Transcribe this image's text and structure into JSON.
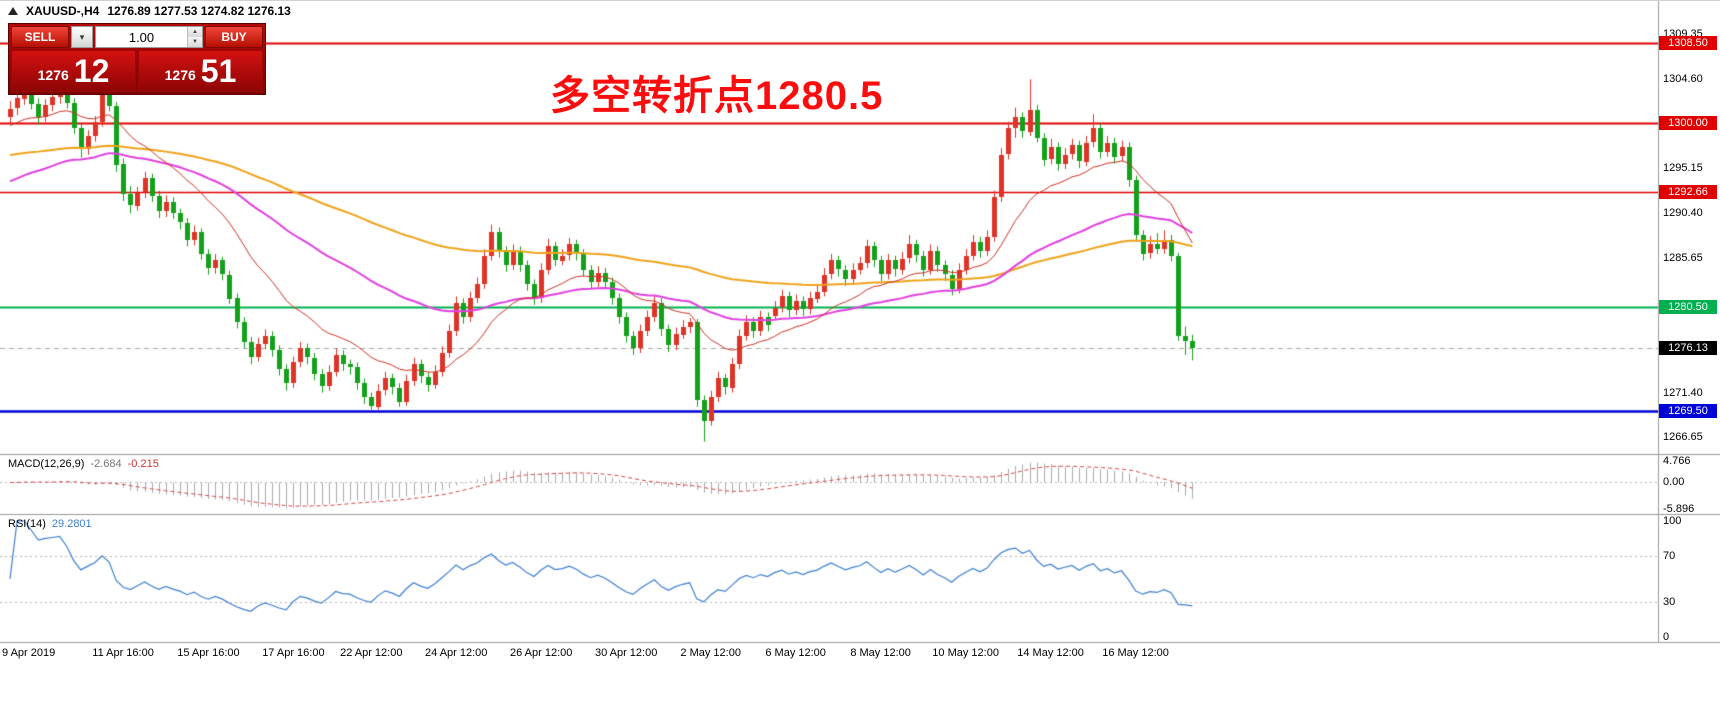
{
  "header": {
    "symbol": "XAUUSD-,H4",
    "ohlc": "1276.89 1277.53 1274.82 1276.13"
  },
  "trade_panel": {
    "sell_label": "SELL",
    "buy_label": "BUY",
    "volume": "1.00",
    "sell_price_small": "1276",
    "sell_price_big": "12",
    "buy_price_small": "1276",
    "buy_price_big": "51"
  },
  "annotation": {
    "text": "多空转折点1280.5",
    "color": "#fb0d0d"
  },
  "macd_panel": {
    "name": "MACD(12,26,9)",
    "value_main": "-2.684",
    "value_signal": "-0.215",
    "axis_labels": [
      "4.766",
      "0.00",
      "-5.896"
    ]
  },
  "rsi_panel": {
    "name": "RSI(14)",
    "value": "29.2801",
    "axis_labels": [
      "100",
      "70",
      "30",
      "0"
    ]
  },
  "price_axis": {
    "ticks": [
      {
        "value": 1309.35,
        "text": "1309.35"
      },
      {
        "value": 1304.6,
        "text": "1304.60"
      },
      {
        "value": 1295.15,
        "text": "1295.15"
      },
      {
        "value": 1290.4,
        "text": "1290.40"
      },
      {
        "value": 1285.65,
        "text": "1285.65"
      },
      {
        "value": 1271.4,
        "text": "1271.40"
      },
      {
        "value": 1266.65,
        "text": "1266.65"
      }
    ],
    "line_labels": [
      {
        "value": 1308.5,
        "text": "1308.50",
        "bg": "#e00000",
        "fg": "#ffffff"
      },
      {
        "value": 1300.0,
        "text": "1300.00",
        "bg": "#e00000",
        "fg": "#ffffff"
      },
      {
        "value": 1292.66,
        "text": "1292.66",
        "bg": "#e00000",
        "fg": "#ffffff"
      },
      {
        "value": 1280.5,
        "text": "1280.50",
        "bg": "#00b050",
        "fg": "#ffffff"
      },
      {
        "value": 1276.13,
        "text": "1276.13",
        "bg": "#000000",
        "fg": "#ffffff"
      },
      {
        "value": 1269.5,
        "text": "1269.50",
        "bg": "#0000d8",
        "fg": "#ffffff"
      }
    ]
  },
  "time_axis": [
    {
      "label": "9 Apr 2019",
      "index": 0
    },
    {
      "label": "11 Apr 16:00",
      "index": 16
    },
    {
      "label": "15 Apr 16:00",
      "index": 28
    },
    {
      "label": "17 Apr 16:00",
      "index": 40
    },
    {
      "label": "22 Apr 12:00",
      "index": 51
    },
    {
      "label": "24 Apr 12:00",
      "index": 63
    },
    {
      "label": "26 Apr 12:00",
      "index": 75
    },
    {
      "label": "30 Apr 12:00",
      "index": 87
    },
    {
      "label": "2 May 12:00",
      "index": 99
    },
    {
      "label": "6 May 12:00",
      "index": 111
    },
    {
      "label": "8 May 12:00",
      "index": 123
    },
    {
      "label": "10 May 12:00",
      "index": 135
    },
    {
      "label": "14 May 12:00",
      "index": 147
    },
    {
      "label": "16 May 12:00",
      "index": 159
    }
  ],
  "chart_data": {
    "type": "candlestick",
    "symbol": "XAUUSD",
    "timeframe": "H4",
    "up_color": "#de3428",
    "down_color": "#15a01b",
    "price_range": [
      1265.0,
      1312.9
    ],
    "hlines": [
      {
        "value": 1308.5,
        "color": "#e00000",
        "width": 2,
        "dash": false
      },
      {
        "value": 1300.0,
        "color": "#e00000",
        "width": 2,
        "dash": false
      },
      {
        "value": 1292.66,
        "color": "#e00000",
        "width": 1.5,
        "dash": false
      },
      {
        "value": 1280.5,
        "color": "#00b050",
        "width": 2,
        "dash": false
      },
      {
        "value": 1269.5,
        "color": "#0000d8",
        "width": 2.5,
        "dash": false
      },
      {
        "value": 1276.13,
        "color": "#a8a8a8",
        "width": 1,
        "dash": true
      }
    ],
    "overlays": [
      {
        "name": "ma-slow-orange",
        "period": 120,
        "seed": 1296.5,
        "color": "#efa21a",
        "width": 2
      },
      {
        "name": "ma-mid-magenta",
        "period": 55,
        "seed": 1293.5,
        "color": "#e040e0",
        "width": 2
      },
      {
        "name": "ma-fast-red",
        "period": 18,
        "seed": 1299.5,
        "color": "#cc3322",
        "width": 1
      }
    ],
    "macd": {
      "fast": 12,
      "slow": 26,
      "signal_period": 9,
      "range": [
        -5.896,
        4.766
      ],
      "histogram_color": "#ababab",
      "signal_color": "#dd4444"
    },
    "rsi": {
      "period": 14,
      "levels": [
        70,
        30
      ],
      "color": "#3e7fd2"
    },
    "candles": [
      [
        1300.6,
        1302.3,
        1299.9,
        1301.5
      ],
      [
        1301.5,
        1303.2,
        1300.8,
        1302.6
      ],
      [
        1302.6,
        1303.9,
        1301.9,
        1303.2
      ],
      [
        1303.2,
        1303.8,
        1301.4,
        1302.0
      ],
      [
        1302.0,
        1302.6,
        1299.8,
        1300.6
      ],
      [
        1300.6,
        1302.5,
        1300.1,
        1301.9
      ],
      [
        1301.9,
        1303.3,
        1301.2,
        1302.7
      ],
      [
        1302.7,
        1304.2,
        1302.0,
        1303.6
      ],
      [
        1303.6,
        1304.0,
        1301.5,
        1302.1
      ],
      [
        1302.1,
        1302.6,
        1298.8,
        1299.4
      ],
      [
        1299.4,
        1299.9,
        1296.3,
        1297.2
      ],
      [
        1297.2,
        1299.2,
        1296.6,
        1298.6
      ],
      [
        1298.6,
        1300.7,
        1298.0,
        1300.1
      ],
      [
        1300.1,
        1304.1,
        1299.6,
        1303.4
      ],
      [
        1303.4,
        1304.3,
        1301.2,
        1301.8
      ],
      [
        1301.8,
        1302.2,
        1294.8,
        1295.6
      ],
      [
        1295.6,
        1296.2,
        1291.7,
        1292.4
      ],
      [
        1292.4,
        1293.3,
        1290.4,
        1291.2
      ],
      [
        1291.2,
        1293.2,
        1290.7,
        1292.6
      ],
      [
        1292.6,
        1294.8,
        1292.0,
        1294.1
      ],
      [
        1294.1,
        1294.6,
        1291.6,
        1292.2
      ],
      [
        1292.2,
        1292.8,
        1289.9,
        1290.6
      ],
      [
        1290.6,
        1292.3,
        1290.0,
        1291.6
      ],
      [
        1291.6,
        1292.1,
        1289.8,
        1290.4
      ],
      [
        1290.4,
        1290.9,
        1288.7,
        1289.4
      ],
      [
        1289.4,
        1289.9,
        1286.9,
        1287.6
      ],
      [
        1287.6,
        1289.1,
        1287.0,
        1288.4
      ],
      [
        1288.4,
        1288.8,
        1285.5,
        1286.1
      ],
      [
        1286.1,
        1286.6,
        1283.9,
        1284.6
      ],
      [
        1284.6,
        1286.1,
        1284.0,
        1285.4
      ],
      [
        1285.4,
        1285.8,
        1283.3,
        1283.9
      ],
      [
        1283.9,
        1284.3,
        1280.8,
        1281.4
      ],
      [
        1281.4,
        1281.9,
        1278.2,
        1278.9
      ],
      [
        1278.9,
        1279.4,
        1276.1,
        1276.8
      ],
      [
        1276.8,
        1277.3,
        1274.4,
        1275.2
      ],
      [
        1275.2,
        1277.2,
        1274.7,
        1276.6
      ],
      [
        1276.6,
        1278.1,
        1276.0,
        1277.4
      ],
      [
        1277.4,
        1277.9,
        1275.2,
        1275.9
      ],
      [
        1275.9,
        1276.4,
        1273.2,
        1273.9
      ],
      [
        1273.9,
        1274.4,
        1271.6,
        1272.4
      ],
      [
        1272.4,
        1275.2,
        1271.9,
        1274.6
      ],
      [
        1274.6,
        1276.8,
        1274.1,
        1276.1
      ],
      [
        1276.1,
        1276.6,
        1274.4,
        1275.1
      ],
      [
        1275.1,
        1275.6,
        1272.7,
        1273.4
      ],
      [
        1273.4,
        1273.9,
        1271.4,
        1272.1
      ],
      [
        1272.1,
        1274.3,
        1271.6,
        1273.6
      ],
      [
        1273.6,
        1276.1,
        1273.1,
        1275.4
      ],
      [
        1275.4,
        1275.9,
        1273.7,
        1274.4
      ],
      [
        1274.4,
        1274.9,
        1273.3,
        1274.1
      ],
      [
        1274.1,
        1274.6,
        1271.7,
        1272.4
      ],
      [
        1272.4,
        1272.9,
        1270.2,
        1270.9
      ],
      [
        1270.9,
        1271.4,
        1269.6,
        1269.9
      ],
      [
        1269.9,
        1272.3,
        1269.6,
        1271.6
      ],
      [
        1271.6,
        1273.6,
        1271.1,
        1272.9
      ],
      [
        1272.9,
        1273.4,
        1271.2,
        1271.9
      ],
      [
        1271.9,
        1272.4,
        1269.9,
        1270.4
      ],
      [
        1270.4,
        1273.3,
        1270.0,
        1272.6
      ],
      [
        1272.6,
        1275.1,
        1272.1,
        1274.4
      ],
      [
        1274.4,
        1274.9,
        1272.4,
        1273.1
      ],
      [
        1273.1,
        1273.6,
        1271.5,
        1272.2
      ],
      [
        1272.2,
        1274.3,
        1271.8,
        1273.6
      ],
      [
        1273.6,
        1276.3,
        1273.1,
        1275.6
      ],
      [
        1275.6,
        1278.6,
        1275.1,
        1277.9
      ],
      [
        1277.9,
        1281.6,
        1277.4,
        1280.9
      ],
      [
        1280.9,
        1281.4,
        1278.7,
        1279.4
      ],
      [
        1279.4,
        1282.1,
        1278.9,
        1281.4
      ],
      [
        1281.4,
        1283.6,
        1280.9,
        1282.9
      ],
      [
        1282.9,
        1286.6,
        1282.4,
        1285.9
      ],
      [
        1285.9,
        1289.2,
        1285.4,
        1288.4
      ],
      [
        1288.4,
        1288.9,
        1285.7,
        1286.4
      ],
      [
        1286.4,
        1286.9,
        1284.2,
        1284.9
      ],
      [
        1284.9,
        1287.1,
        1284.4,
        1286.4
      ],
      [
        1286.4,
        1286.9,
        1284.2,
        1284.9
      ],
      [
        1284.9,
        1285.4,
        1282.2,
        1282.9
      ],
      [
        1282.9,
        1283.4,
        1280.7,
        1281.4
      ],
      [
        1281.4,
        1285.1,
        1280.9,
        1284.4
      ],
      [
        1284.4,
        1287.7,
        1283.9,
        1286.9
      ],
      [
        1286.9,
        1287.4,
        1284.8,
        1285.4
      ],
      [
        1285.4,
        1286.6,
        1284.9,
        1285.9
      ],
      [
        1285.9,
        1287.8,
        1285.4,
        1287.1
      ],
      [
        1287.1,
        1287.6,
        1285.4,
        1286.1
      ],
      [
        1286.1,
        1286.6,
        1283.7,
        1284.4
      ],
      [
        1284.4,
        1284.9,
        1282.4,
        1283.1
      ],
      [
        1283.1,
        1284.8,
        1282.6,
        1284.1
      ],
      [
        1284.1,
        1284.6,
        1282.4,
        1283.1
      ],
      [
        1283.1,
        1283.6,
        1280.7,
        1281.4
      ],
      [
        1281.4,
        1281.9,
        1278.7,
        1279.4
      ],
      [
        1279.4,
        1279.9,
        1276.7,
        1277.4
      ],
      [
        1277.4,
        1277.9,
        1275.4,
        1276.1
      ],
      [
        1276.1,
        1278.6,
        1275.6,
        1277.9
      ],
      [
        1277.9,
        1280.1,
        1277.4,
        1279.4
      ],
      [
        1279.4,
        1281.6,
        1278.9,
        1280.9
      ],
      [
        1280.9,
        1281.4,
        1277.4,
        1278.1
      ],
      [
        1278.1,
        1278.6,
        1275.7,
        1276.4
      ],
      [
        1276.4,
        1278.3,
        1275.9,
        1277.6
      ],
      [
        1277.6,
        1279.1,
        1277.1,
        1278.4
      ],
      [
        1278.4,
        1279.3,
        1277.7,
        1278.9
      ],
      [
        1278.9,
        1279.2,
        1269.9,
        1270.6
      ],
      [
        1270.6,
        1271.1,
        1266.2,
        1268.4
      ],
      [
        1268.4,
        1271.6,
        1267.9,
        1270.9
      ],
      [
        1270.9,
        1273.6,
        1270.4,
        1272.9
      ],
      [
        1272.9,
        1273.4,
        1271.2,
        1271.9
      ],
      [
        1271.9,
        1275.1,
        1271.4,
        1274.4
      ],
      [
        1274.4,
        1278.1,
        1273.9,
        1277.4
      ],
      [
        1277.4,
        1279.6,
        1276.9,
        1278.9
      ],
      [
        1278.9,
        1279.4,
        1277.2,
        1277.9
      ],
      [
        1277.9,
        1280.1,
        1277.4,
        1279.4
      ],
      [
        1279.4,
        1279.9,
        1277.9,
        1278.6
      ],
      [
        1279.6,
        1281.1,
        1279.1,
        1280.4
      ],
      [
        1280.4,
        1282.3,
        1279.9,
        1281.6
      ],
      [
        1281.6,
        1282.1,
        1279.4,
        1280.1
      ],
      [
        1280.1,
        1281.8,
        1279.6,
        1281.1
      ],
      [
        1281.1,
        1281.6,
        1279.5,
        1280.2
      ],
      [
        1280.2,
        1282.1,
        1279.7,
        1281.4
      ],
      [
        1281.4,
        1282.8,
        1280.9,
        1282.1
      ],
      [
        1282.1,
        1284.6,
        1281.6,
        1283.9
      ],
      [
        1283.9,
        1286.1,
        1283.4,
        1285.4
      ],
      [
        1285.4,
        1285.9,
        1283.7,
        1284.4
      ],
      [
        1284.4,
        1284.9,
        1282.7,
        1283.4
      ],
      [
        1283.4,
        1285.1,
        1282.9,
        1284.4
      ],
      [
        1284.4,
        1285.8,
        1283.9,
        1285.1
      ],
      [
        1285.1,
        1287.6,
        1284.6,
        1286.9
      ],
      [
        1286.9,
        1287.4,
        1284.7,
        1285.4
      ],
      [
        1285.4,
        1285.9,
        1283.2,
        1283.9
      ],
      [
        1283.9,
        1286.1,
        1283.4,
        1285.4
      ],
      [
        1285.4,
        1285.9,
        1283.7,
        1284.4
      ],
      [
        1284.4,
        1286.3,
        1283.9,
        1285.6
      ],
      [
        1285.6,
        1288.1,
        1285.1,
        1287.1
      ],
      [
        1287.1,
        1287.6,
        1285.2,
        1285.9
      ],
      [
        1285.9,
        1286.4,
        1283.7,
        1284.4
      ],
      [
        1284.4,
        1287.1,
        1283.9,
        1286.4
      ],
      [
        1286.4,
        1286.9,
        1284.2,
        1284.9
      ],
      [
        1284.9,
        1285.4,
        1283.2,
        1283.9
      ],
      [
        1283.9,
        1284.4,
        1281.7,
        1282.4
      ],
      [
        1282.4,
        1285.1,
        1281.9,
        1284.4
      ],
      [
        1284.4,
        1286.6,
        1283.9,
        1285.9
      ],
      [
        1285.9,
        1288.1,
        1285.4,
        1287.4
      ],
      [
        1287.4,
        1287.9,
        1285.7,
        1286.4
      ],
      [
        1286.4,
        1288.6,
        1285.9,
        1287.9
      ],
      [
        1287.9,
        1292.8,
        1287.4,
        1292.1
      ],
      [
        1292.1,
        1297.3,
        1291.6,
        1296.6
      ],
      [
        1296.6,
        1300.1,
        1296.1,
        1299.4
      ],
      [
        1299.4,
        1301.6,
        1298.4,
        1300.6
      ],
      [
        1300.6,
        1301.1,
        1298.4,
        1299.1
      ],
      [
        1299.1,
        1304.6,
        1298.6,
        1301.4
      ],
      [
        1301.4,
        1301.9,
        1297.9,
        1298.4
      ],
      [
        1298.4,
        1298.9,
        1295.4,
        1296.1
      ],
      [
        1296.1,
        1298.3,
        1295.6,
        1297.4
      ],
      [
        1297.4,
        1297.9,
        1294.9,
        1295.6
      ],
      [
        1295.6,
        1297.3,
        1295.1,
        1296.6
      ],
      [
        1296.6,
        1298.3,
        1296.1,
        1297.6
      ],
      [
        1297.6,
        1298.1,
        1295.2,
        1295.9
      ],
      [
        1295.9,
        1298.6,
        1295.4,
        1297.9
      ],
      [
        1297.9,
        1300.9,
        1297.4,
        1299.4
      ],
      [
        1299.4,
        1299.9,
        1296.2,
        1296.9
      ],
      [
        1296.9,
        1298.6,
        1296.4,
        1297.9
      ],
      [
        1297.9,
        1298.4,
        1295.7,
        1296.4
      ],
      [
        1296.4,
        1298.1,
        1295.9,
        1297.4
      ],
      [
        1297.4,
        1297.9,
        1293.2,
        1293.9
      ],
      [
        1293.9,
        1294.4,
        1287.4,
        1288.1
      ],
      [
        1288.1,
        1288.6,
        1285.4,
        1286.1
      ],
      [
        1286.1,
        1288.0,
        1285.6,
        1287.1
      ],
      [
        1287.1,
        1288.3,
        1286.1,
        1286.6
      ],
      [
        1286.6,
        1288.6,
        1286.1,
        1287.6
      ],
      [
        1287.6,
        1288.1,
        1285.3,
        1285.9
      ],
      [
        1285.9,
        1286.2,
        1276.9,
        1277.4
      ],
      [
        1277.4,
        1278.4,
        1275.4,
        1276.9
      ],
      [
        1276.89,
        1277.53,
        1274.82,
        1276.13
      ]
    ]
  }
}
